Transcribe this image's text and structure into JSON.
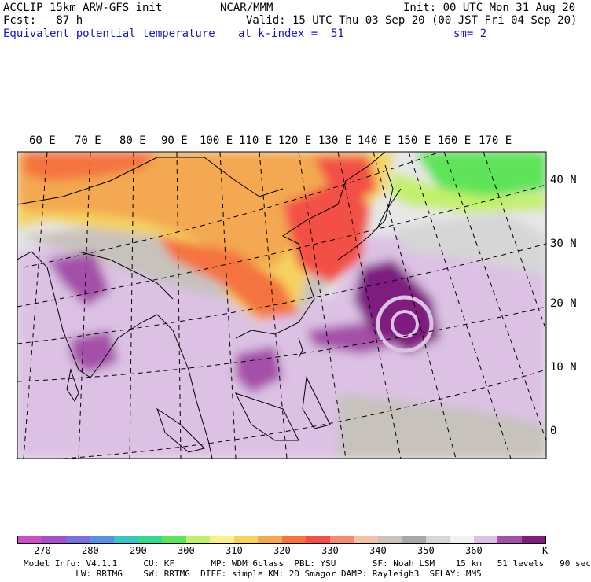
{
  "header": {
    "line1_left": "ACCLIP 15km ARW-GFS init",
    "line1_center": "NCAR/MMM",
    "line1_right": "Init: 00 UTC Mon 31 Aug 20",
    "line2_left": "Fcst:   87 h",
    "line2_right": "Valid: 15 UTC Thu 03 Sep 20 (00 JST Fri 04 Sep 20)",
    "line3_left": "Equivalent potential temperature",
    "line3_center": "at k-index =  51",
    "line3_right": "sm= 2"
  },
  "map": {
    "lon_labels": [
      "60 E",
      "70 E",
      "80 E",
      "90 E",
      "100 E",
      "110 E",
      "120 E",
      "130 E",
      "140 E",
      "150 E",
      "160 E",
      "170 E"
    ],
    "lat_labels": [
      "40 N",
      "30 N",
      "20 N",
      "10 N",
      "0"
    ]
  },
  "colorbar": {
    "colors": [
      "#c94fc9",
      "#a54fc9",
      "#7a6ee0",
      "#5a8fe6",
      "#3bc4c4",
      "#35d88d",
      "#5fe35a",
      "#c3f06c",
      "#f8f08a",
      "#f5d262",
      "#f4a851",
      "#f4733f",
      "#f24f47",
      "#f48c74",
      "#f2c1a8",
      "#c8c2bd",
      "#a8a8a8",
      "#d6d6d6",
      "#f2f2f2",
      "#dcc1e4",
      "#a44fa8",
      "#7e1c80"
    ],
    "labels": [
      "270",
      "280",
      "290",
      "300",
      "310",
      "320",
      "330",
      "340",
      "350",
      "360"
    ],
    "unit": "K"
  },
  "footer": {
    "line1": "Model Info: V4.1.1     CU: KF       MP: WDM 6class  PBL: YSU       SF: Noah LSM    15 km   51 levels   90 sec",
    "line2": "          LW: RRTMG    SW: RRTMG  DIFF: simple KM: 2D Smagor DAMP: Rayleigh3  SFLAY: MM5"
  }
}
